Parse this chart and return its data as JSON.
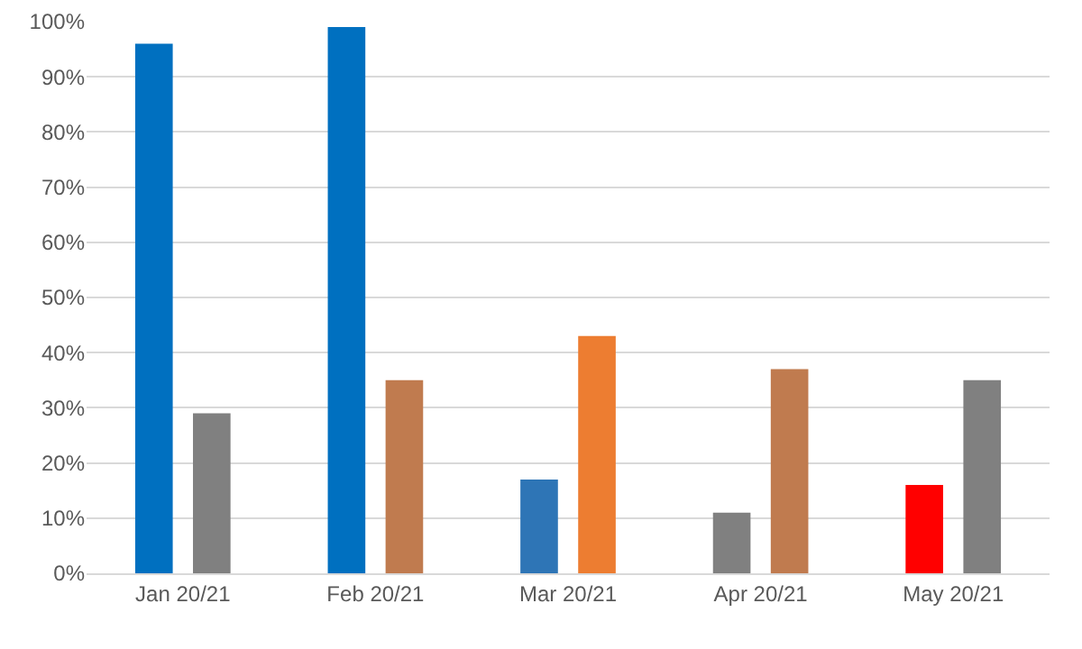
{
  "chart_data": {
    "type": "bar",
    "categories": [
      "Jan 20/21",
      "Feb 20/21",
      "Mar 20/21",
      "Apr 20/21",
      "May 20/21"
    ],
    "series": [
      {
        "colors": [
          "#0070c0",
          "#0070c0",
          "#2e75b6",
          "#808080",
          "#ff0000"
        ],
        "values": [
          96,
          99,
          17,
          11,
          16
        ]
      },
      {
        "colors": [
          "#808080",
          "#c07b4f",
          "#ed7d31",
          "#c07b4f",
          "#808080"
        ],
        "values": [
          29,
          35,
          43,
          37,
          35
        ]
      }
    ],
    "ylim": [
      0,
      100
    ],
    "yticks": [
      {
        "value": 0,
        "label": "0%"
      },
      {
        "value": 10,
        "label": "10%"
      },
      {
        "value": 20,
        "label": "20%"
      },
      {
        "value": 30,
        "label": "30%"
      },
      {
        "value": 40,
        "label": "40%"
      },
      {
        "value": 50,
        "label": "50%"
      },
      {
        "value": 60,
        "label": "60%"
      },
      {
        "value": 70,
        "label": "70%"
      },
      {
        "value": 80,
        "label": "80%"
      },
      {
        "value": 90,
        "label": "90%"
      },
      {
        "value": 100,
        "label": "100%"
      }
    ],
    "grid": "y"
  }
}
